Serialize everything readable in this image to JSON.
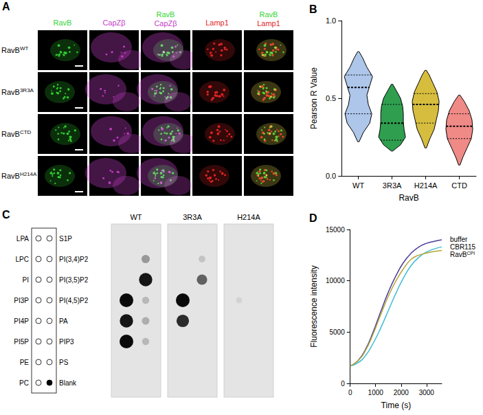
{
  "panel_a": {
    "letter": "A",
    "channels": [
      {
        "name": "RavB",
        "color": "#33d433"
      },
      {
        "name": "CapZβ",
        "color": "#c43ec8"
      },
      {
        "name": "Lamp1",
        "color": "#e52424"
      }
    ],
    "columns": [
      [
        "RavB"
      ],
      [
        "CapZβ"
      ],
      [
        "RavB",
        "CapZβ"
      ],
      [
        "Lamp1"
      ],
      [
        "RavB",
        "Lamp1"
      ]
    ],
    "rows": [
      {
        "name": "RavB",
        "sup": "WT"
      },
      {
        "name": "RavB",
        "sup": "3R3A"
      },
      {
        "name": "RavB",
        "sup": "CTD"
      },
      {
        "name": "RavB",
        "sup": "H214A"
      }
    ]
  },
  "chart_data": [
    {
      "panel": "B",
      "type": "violin",
      "categories": [
        "WT",
        "3R3A",
        "H214A",
        "CTD"
      ],
      "colors": [
        "#adc6ea",
        "#2f9e4f",
        "#d6bd3e",
        "#ef8a86"
      ],
      "xlabel": "RavB",
      "ylabel": "Pearson R Value",
      "ylim": [
        0,
        1
      ],
      "yticks": [
        {
          "value": 0,
          "label": "0.0"
        },
        {
          "value": 0.5,
          "label": "0.5"
        },
        {
          "value": 1,
          "label": "1.0"
        }
      ],
      "grid": false,
      "violins": [
        {
          "q1": 0.4,
          "median": 0.57,
          "q3": 0.65,
          "y": [
            0.22,
            0.28,
            0.34,
            0.4,
            0.46,
            0.52,
            0.58,
            0.64,
            0.7,
            0.76,
            0.8
          ],
          "density": [
            0.05,
            0.35,
            0.8,
            0.95,
            0.7,
            0.6,
            0.8,
            1.0,
            0.6,
            0.3,
            0.05
          ]
        },
        {
          "q1": 0.23,
          "median": 0.34,
          "q3": 0.46,
          "y": [
            0.16,
            0.2,
            0.25,
            0.3,
            0.35,
            0.4,
            0.45,
            0.5,
            0.55,
            0.59
          ],
          "density": [
            0.05,
            0.6,
            0.95,
            0.85,
            0.8,
            0.8,
            0.75,
            0.6,
            0.3,
            0.05
          ]
        },
        {
          "q1": 0.34,
          "median": 0.46,
          "q3": 0.53,
          "y": [
            0.18,
            0.24,
            0.3,
            0.36,
            0.42,
            0.48,
            0.54,
            0.6,
            0.65,
            0.68
          ],
          "density": [
            0.05,
            0.3,
            0.6,
            0.75,
            0.9,
            0.95,
            0.8,
            0.5,
            0.25,
            0.05
          ]
        },
        {
          "q1": 0.24,
          "median": 0.32,
          "q3": 0.4,
          "y": [
            0.07,
            0.12,
            0.18,
            0.24,
            0.3,
            0.36,
            0.42,
            0.48,
            0.52
          ],
          "density": [
            0.05,
            0.25,
            0.55,
            0.85,
            0.95,
            0.9,
            0.7,
            0.35,
            0.05
          ]
        }
      ]
    },
    {
      "panel": "D",
      "type": "line",
      "xlabel": "Time (s)",
      "ylabel": "Fluorescence intensity",
      "x": [
        0,
        300,
        600,
        900,
        1200,
        1500,
        1800,
        2100,
        2400,
        2700,
        3000,
        3300,
        3600
      ],
      "xlim": [
        0,
        3600
      ],
      "xticks": [
        0,
        1000,
        2000,
        3000
      ],
      "ylim": [
        0,
        15000
      ],
      "yticks": [
        0,
        5000,
        10000,
        15000
      ],
      "grid": false,
      "series": [
        {
          "name": "buffer",
          "color": "#4a3d9c",
          "values": [
            1700,
            2200,
            3300,
            5000,
            7000,
            8900,
            10500,
            11800,
            12700,
            13300,
            13650,
            13850,
            14000
          ]
        },
        {
          "name": "CBR115",
          "color": "#3fbcd6",
          "values": [
            1700,
            2000,
            2700,
            3900,
            5400,
            7100,
            8800,
            10300,
            11500,
            12300,
            12800,
            13100,
            13300
          ]
        },
        {
          "name": "RavB",
          "name_sup": "CPI",
          "color": "#b5a536",
          "values": [
            1700,
            2200,
            3200,
            4800,
            6700,
            8500,
            10000,
            11200,
            12100,
            12500,
            12700,
            12850,
            12950
          ]
        }
      ]
    }
  ],
  "panel_c": {
    "letter": "C",
    "left": [
      "LPA",
      "LPC",
      "PI",
      "PI3P",
      "PI4P",
      "PI5P",
      "PE",
      "PC"
    ],
    "right": [
      "S1P",
      "PI(3,4)P2",
      "PI(3,5)P2",
      "PI(4,5)P2",
      "PA",
      "PIP3",
      "PS",
      "Blank"
    ],
    "key_filled": [
      "Blank"
    ],
    "blots": [
      {
        "name": "WT",
        "left": [
          0,
          0,
          0,
          1,
          0.95,
          1,
          0,
          0
        ],
        "right": [
          0,
          0.35,
          0.95,
          0.2,
          0.25,
          0.2,
          0,
          0
        ]
      },
      {
        "name": "3R3A",
        "left": [
          0,
          0,
          0,
          1,
          0.85,
          0,
          0,
          0
        ],
        "right": [
          0,
          0.15,
          0.6,
          0,
          0,
          0,
          0,
          0
        ]
      },
      {
        "name": "H214A",
        "left": [
          0,
          0,
          0,
          0.08,
          0,
          0,
          0,
          0
        ],
        "right": [
          0,
          0,
          0,
          0,
          0,
          0,
          0,
          0
        ]
      }
    ]
  }
}
